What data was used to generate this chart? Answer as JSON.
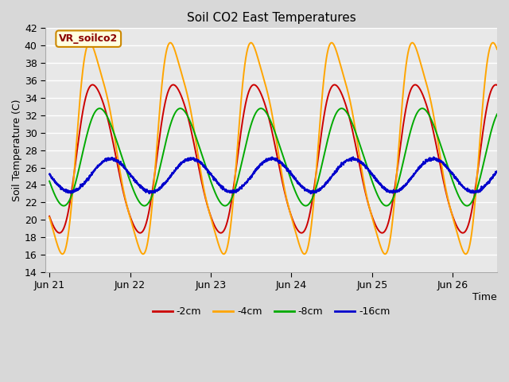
{
  "title": "Soil CO2 East Temperatures",
  "xlabel": "Time",
  "ylabel": "Soil Temperature (C)",
  "ylim": [
    14,
    42
  ],
  "xlim": [
    -0.05,
    5.55
  ],
  "annotation": "VR_soilco2",
  "bg_color": "#e8e8e8",
  "grid_color": "#ffffff",
  "colors": {
    "-2cm": "#cc0000",
    "-4cm": "#ffa500",
    "-8cm": "#00aa00",
    "-16cm": "#0000cc"
  },
  "x_tick_positions": [
    0,
    1,
    2,
    3,
    4,
    5
  ],
  "x_tick_labels": [
    "Jun 21",
    "Jun 22",
    "Jun 23",
    "Jun 24",
    "Jun 25",
    "Jun 26"
  ],
  "ytick_min": 14,
  "ytick_max": 42,
  "ytick_step": 2
}
